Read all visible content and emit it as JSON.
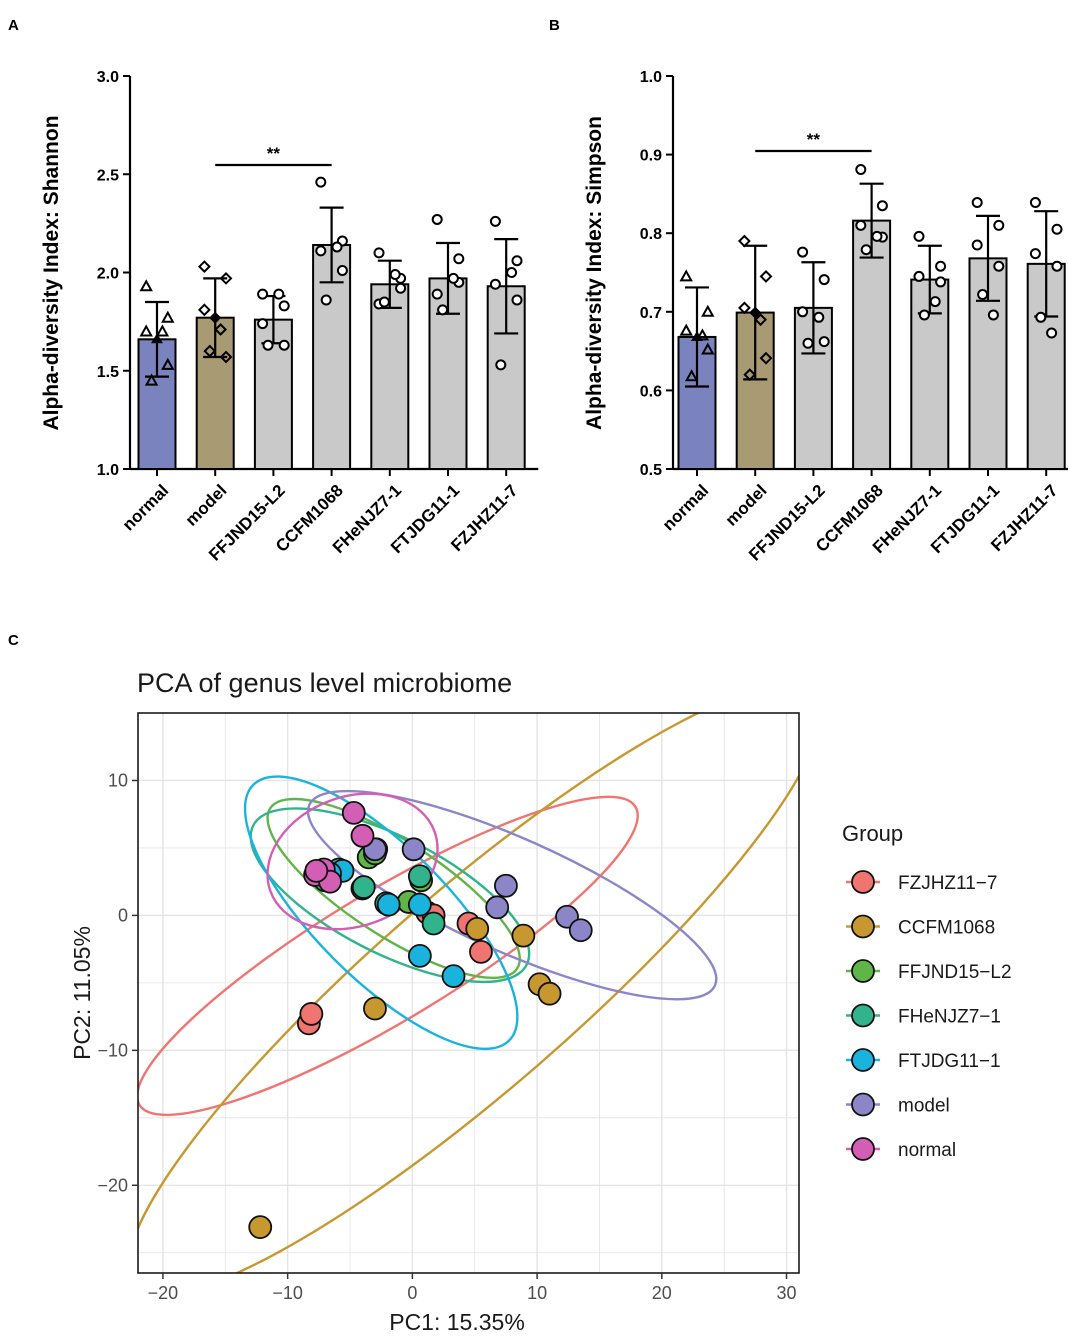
{
  "panels": {
    "A": {
      "label": "A",
      "chart_data": {
        "type": "bar",
        "title": "",
        "xlabel": "",
        "ylabel": "Alpha-diversity Index: Shannon",
        "ylim": [
          1.0,
          3.0
        ],
        "yticks": [
          "1.0",
          "1.5",
          "2.0",
          "2.5",
          "3.0"
        ],
        "categories": [
          "normal",
          "model",
          "FFJND15-L2",
          "CCFM1068",
          "FHeNJZ7-1",
          "FTJDG11-1",
          "FZJHZ11-7"
        ],
        "values": [
          1.66,
          1.77,
          1.76,
          2.14,
          1.94,
          1.97,
          1.93
        ],
        "errors": [
          0.19,
          0.2,
          0.12,
          0.19,
          0.12,
          0.18,
          0.24
        ],
        "points": [
          [
            1.93,
            1.77,
            1.7,
            1.53,
            1.45,
            1.7
          ],
          [
            2.03,
            1.97,
            1.81,
            1.57,
            1.6,
            1.71
          ],
          [
            1.89,
            1.83,
            1.74,
            1.63,
            1.63,
            1.89
          ],
          [
            2.46,
            2.16,
            2.11,
            2.01,
            1.86,
            2.13
          ],
          [
            2.1,
            1.97,
            1.84,
            1.92,
            1.85,
            1.99
          ],
          [
            2.27,
            2.07,
            1.89,
            1.95,
            1.81,
            1.97
          ],
          [
            2.26,
            2.06,
            1.94,
            1.86,
            1.53,
            2.0
          ]
        ],
        "markers": [
          "triangle",
          "diamond",
          "circle",
          "circle",
          "circle",
          "circle",
          "circle"
        ],
        "colors": [
          "#7b83bf",
          "#a89a72",
          "#c9c9c9",
          "#c9c9c9",
          "#c9c9c9",
          "#c9c9c9",
          "#c9c9c9"
        ],
        "significance": {
          "from": "model",
          "to": "CCFM1068",
          "label": "**"
        }
      }
    },
    "B": {
      "label": "B",
      "chart_data": {
        "type": "bar",
        "title": "",
        "xlabel": "",
        "ylabel": "Alpha-diversity Index: Simpson",
        "ylim": [
          0.5,
          1.0
        ],
        "yticks": [
          "0.5",
          "0.6",
          "0.7",
          "0.8",
          "0.9",
          "1.0"
        ],
        "categories": [
          "normal",
          "model",
          "FFJND15-L2",
          "CCFM1068",
          "FHeNJZ7-1",
          "FTJDG11-1",
          "FZJHZ11-7"
        ],
        "values": [
          0.668,
          0.699,
          0.705,
          0.816,
          0.741,
          0.768,
          0.761
        ],
        "errors": [
          0.063,
          0.085,
          0.058,
          0.047,
          0.043,
          0.054,
          0.067
        ],
        "points": [
          [
            0.745,
            0.7,
            0.676,
            0.652,
            0.618,
            0.67
          ],
          [
            0.79,
            0.745,
            0.705,
            0.641,
            0.62,
            0.69
          ],
          [
            0.776,
            0.741,
            0.7,
            0.662,
            0.66,
            0.693
          ],
          [
            0.881,
            0.835,
            0.81,
            0.795,
            0.779,
            0.796
          ],
          [
            0.796,
            0.758,
            0.745,
            0.738,
            0.696,
            0.713
          ],
          [
            0.839,
            0.81,
            0.785,
            0.758,
            0.722,
            0.696
          ],
          [
            0.839,
            0.805,
            0.774,
            0.758,
            0.693,
            0.673
          ]
        ],
        "markers": [
          "triangle",
          "diamond",
          "circle",
          "circle",
          "circle",
          "circle",
          "circle"
        ],
        "colors": [
          "#7b83bf",
          "#a89a72",
          "#c9c9c9",
          "#c9c9c9",
          "#c9c9c9",
          "#c9c9c9",
          "#c9c9c9"
        ],
        "significance": {
          "from": "model",
          "to": "CCFM1068",
          "label": "**"
        }
      }
    },
    "C": {
      "label": "C",
      "chart_data": {
        "type": "scatter",
        "title": "PCA of genus level microbiome",
        "xlabel": "PC1: 15.35%",
        "ylabel": "PC2: 11.05%",
        "xlim": [
          -22,
          31
        ],
        "ylim": [
          -26.5,
          15
        ],
        "xticks": [
          -20,
          -10,
          0,
          10,
          20,
          30
        ],
        "yticks": [
          -20,
          -10,
          0,
          10
        ],
        "grid": true,
        "legend_title": "Group",
        "legend_position": "right",
        "series": [
          {
            "name": "FZJHZ11-7",
            "color": "#f07470",
            "points": [
              [
                -8.3,
                -8.0
              ],
              [
                -8.1,
                -7.3
              ],
              [
                1.2,
                0.2
              ],
              [
                1.7,
                0.0
              ],
              [
                4.5,
                -0.6
              ],
              [
                5.5,
                -2.7
              ]
            ],
            "ellipse": {
              "cx": -2.0,
              "cy": -3.0,
              "rx": 23.2,
              "ry": 4.8,
              "angle": 31
            }
          },
          {
            "name": "CCFM1068",
            "color": "#c79830",
            "points": [
              [
                -12.2,
                -23.1
              ],
              [
                -3.0,
                -6.9
              ],
              [
                5.2,
                -1.0
              ],
              [
                8.9,
                -1.5
              ],
              [
                10.2,
                -5.1
              ],
              [
                11.0,
                -5.8
              ]
            ],
            "ellipse": {
              "cx": 5.0,
              "cy": -5.5,
              "rx": 36.2,
              "ry": 7.3,
              "angle": 41
            }
          },
          {
            "name": "FFJND15-L2",
            "color": "#5fb548",
            "points": [
              [
                -3.5,
                4.3
              ],
              [
                -2.9,
                4.9
              ],
              [
                -3.0,
                4.6
              ],
              [
                -0.3,
                1.0
              ],
              [
                0.7,
                2.6
              ],
              [
                -4.0,
                2.0
              ]
            ],
            "ellipse": {
              "cx": -1.5,
              "cy": 2.0,
              "rx": 11.8,
              "ry": 3.5,
              "angle": -33
            }
          },
          {
            "name": "FHeNJZ7-1",
            "color": "#31b48c",
            "points": [
              [
                -5.9,
                3.4
              ],
              [
                -7.0,
                2.6
              ],
              [
                -3.9,
                2.1
              ],
              [
                0.6,
                2.9
              ],
              [
                1.7,
                -0.6
              ],
              [
                -2.1,
                0.9
              ]
            ],
            "ellipse": {
              "cx": -1.8,
              "cy": 1.5,
              "rx": 12.3,
              "ry": 4.3,
              "angle": -27
            }
          },
          {
            "name": "FTJDG11-1",
            "color": "#1ab3de",
            "points": [
              [
                -5.6,
                3.3
              ],
              [
                -6.6,
                3.1
              ],
              [
                -1.9,
                0.8
              ],
              [
                0.6,
                0.8
              ],
              [
                0.6,
                -3.0
              ],
              [
                3.3,
                -4.5
              ]
            ],
            "ellipse": {
              "cx": -2.5,
              "cy": 0.2,
              "rx": 14.5,
              "ry": 4.9,
              "angle": -45
            }
          },
          {
            "name": "model",
            "color": "#8c86c9",
            "points": [
              [
                0.1,
                4.9
              ],
              [
                6.8,
                0.6
              ],
              [
                7.5,
                2.2
              ],
              [
                12.4,
                -0.1
              ],
              [
                13.5,
                -1.1
              ],
              [
                -3.0,
                4.9
              ]
            ],
            "ellipse": {
              "cx": 8.0,
              "cy": 1.5,
              "rx": 17.8,
              "ry": 4.2,
              "angle": -24
            }
          },
          {
            "name": "normal",
            "color": "#d35fb5",
            "points": [
              [
                -7.8,
                3.0
              ],
              [
                -7.1,
                3.4
              ],
              [
                -6.6,
                2.5
              ],
              [
                -4.7,
                7.6
              ],
              [
                -4.0,
                5.9
              ],
              [
                -7.7,
                3.3
              ]
            ],
            "ellipse": {
              "cx": -4.8,
              "cy": 4.0,
              "rx": 7.0,
              "ry": 4.8,
              "angle": 20
            }
          }
        ]
      }
    }
  }
}
